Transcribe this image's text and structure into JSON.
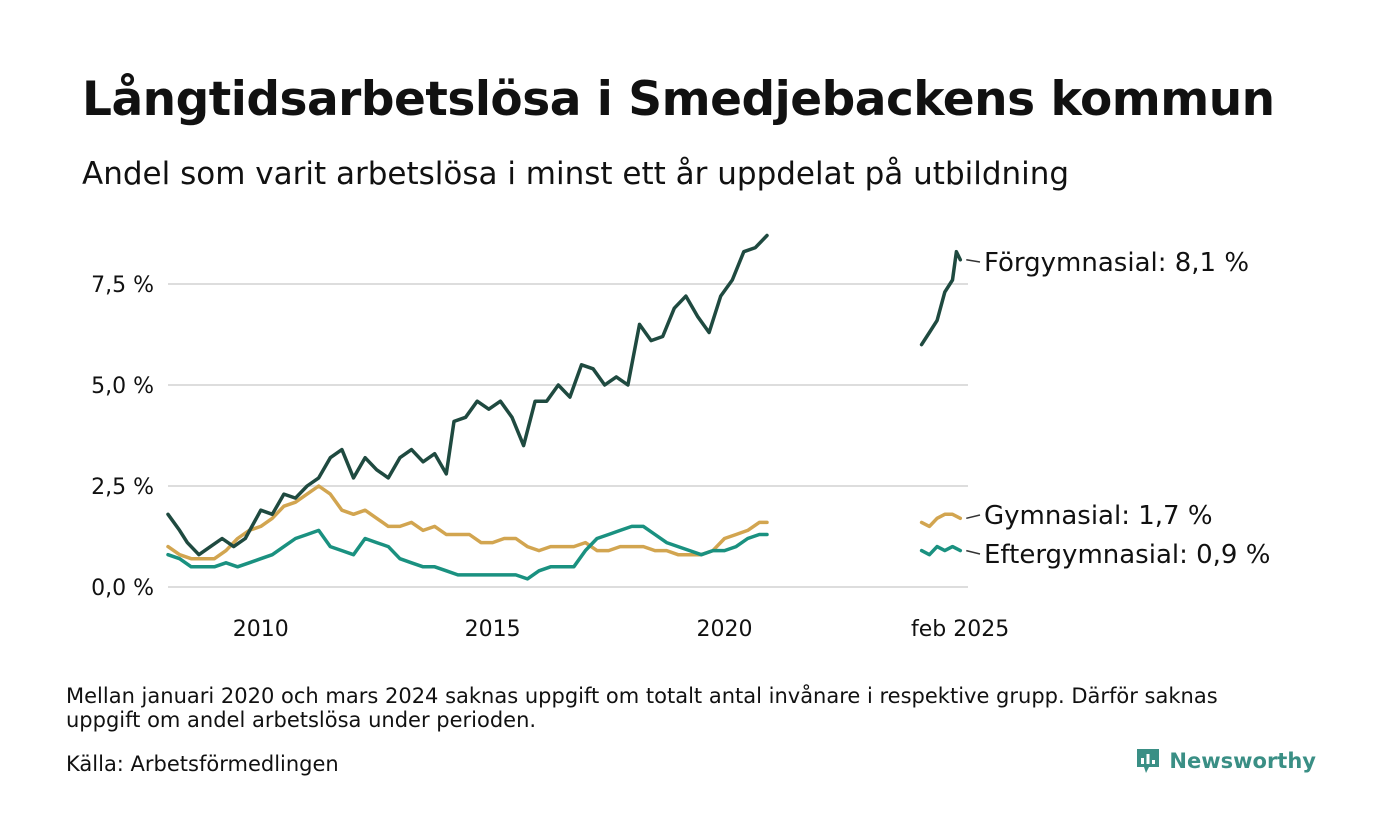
{
  "title": "Långtidsarbetslösa i Smedjebackens kommun",
  "subtitle": "Andel som varit arbetslösa i minst ett år uppdelat på utbildning",
  "note": "Mellan januari 2020 och mars 2024 saknas uppgift om totalt antal invånare i respektive grupp. Därför saknas uppgift om andel arbetslösa under perioden.",
  "source": "Källa: Arbetsförmedlingen",
  "brand": "Newsworthy",
  "colors": {
    "forgymnasial": "#1f4a40",
    "gymnasial": "#d2a550",
    "eftergymnasial": "#1a9180",
    "grid": "#dddddd",
    "brand": "#3a8f85"
  },
  "chart_data": {
    "type": "line",
    "title": "Långtidsarbetslösa i Smedjebackens kommun",
    "subtitle": "Andel som varit arbetslösa i minst ett år uppdelat på utbildning",
    "xlabel": "",
    "ylabel": "",
    "x_ticks": [
      "2010",
      "2015",
      "2020",
      "feb 2025"
    ],
    "y_ticks": [
      "0,0 %",
      "2,5 %",
      "5,0 %",
      "7,5 %"
    ],
    "ylim": [
      0,
      8.7
    ],
    "grid": "horizontal",
    "legend": "direct labels at line ends (right)",
    "end_labels": [
      "Förgymnasial: 8,1 %",
      "Gymnasial: 1,7 %",
      "Eftergymnasial: 0,9 %"
    ],
    "gap_note": "Data missing between 2021 and 2024",
    "series": [
      {
        "name": "Förgymnasial",
        "segments": [
          [
            [
              "2008-01",
              1.8
            ],
            [
              "2008-04",
              1.4
            ],
            [
              "2008-06",
              1.1
            ],
            [
              "2008-09",
              0.8
            ],
            [
              "2008-12",
              1.0
            ],
            [
              "2009-03",
              1.2
            ],
            [
              "2009-06",
              1.0
            ],
            [
              "2009-09",
              1.2
            ],
            [
              "2010-01",
              1.9
            ],
            [
              "2010-04",
              1.8
            ],
            [
              "2010-07",
              2.3
            ],
            [
              "2010-10",
              2.2
            ],
            [
              "2011-01",
              2.5
            ],
            [
              "2011-04",
              2.7
            ],
            [
              "2011-07",
              3.2
            ],
            [
              "2011-10",
              3.4
            ],
            [
              "2012-01",
              2.7
            ],
            [
              "2012-04",
              3.2
            ],
            [
              "2012-07",
              2.9
            ],
            [
              "2012-10",
              2.7
            ],
            [
              "2013-01",
              3.2
            ],
            [
              "2013-04",
              3.4
            ],
            [
              "2013-07",
              3.1
            ],
            [
              "2013-10",
              3.3
            ],
            [
              "2014-01",
              2.8
            ],
            [
              "2014-03",
              4.1
            ],
            [
              "2014-06",
              4.2
            ],
            [
              "2014-09",
              4.6
            ],
            [
              "2014-12",
              4.4
            ],
            [
              "2015-03",
              4.6
            ],
            [
              "2015-06",
              4.2
            ],
            [
              "2015-09",
              3.5
            ],
            [
              "2015-12",
              4.6
            ],
            [
              "2016-03",
              4.6
            ],
            [
              "2016-06",
              5.0
            ],
            [
              "2016-09",
              4.7
            ],
            [
              "2016-12",
              5.5
            ],
            [
              "2017-03",
              5.4
            ],
            [
              "2017-06",
              5.0
            ],
            [
              "2017-09",
              5.2
            ],
            [
              "2017-12",
              5.0
            ],
            [
              "2018-03",
              6.5
            ],
            [
              "2018-06",
              6.1
            ],
            [
              "2018-09",
              6.2
            ],
            [
              "2018-12",
              6.9
            ],
            [
              "2019-03",
              7.2
            ],
            [
              "2019-06",
              6.7
            ],
            [
              "2019-09",
              6.3
            ],
            [
              "2019-12",
              7.2
            ],
            [
              "2020-03",
              7.6
            ],
            [
              "2020-06",
              8.3
            ],
            [
              "2020-09",
              8.4
            ],
            [
              "2020-12",
              8.7
            ]
          ],
          [
            [
              "2024-04",
              6.0
            ],
            [
              "2024-06",
              6.3
            ],
            [
              "2024-08",
              6.6
            ],
            [
              "2024-10",
              7.3
            ],
            [
              "2024-12",
              7.6
            ],
            [
              "2025-01",
              8.3
            ],
            [
              "2025-02",
              8.1
            ]
          ]
        ]
      },
      {
        "name": "Gymnasial",
        "segments": [
          [
            [
              "2008-01",
              1.0
            ],
            [
              "2008-04",
              0.8
            ],
            [
              "2008-07",
              0.7
            ],
            [
              "2008-10",
              0.7
            ],
            [
              "2009-01",
              0.7
            ],
            [
              "2009-04",
              0.9
            ],
            [
              "2009-07",
              1.2
            ],
            [
              "2009-10",
              1.4
            ],
            [
              "2010-01",
              1.5
            ],
            [
              "2010-04",
              1.7
            ],
            [
              "2010-07",
              2.0
            ],
            [
              "2010-10",
              2.1
            ],
            [
              "2011-01",
              2.3
            ],
            [
              "2011-04",
              2.5
            ],
            [
              "2011-07",
              2.3
            ],
            [
              "2011-10",
              1.9
            ],
            [
              "2012-01",
              1.8
            ],
            [
              "2012-04",
              1.9
            ],
            [
              "2012-07",
              1.7
            ],
            [
              "2012-10",
              1.5
            ],
            [
              "2013-01",
              1.5
            ],
            [
              "2013-04",
              1.6
            ],
            [
              "2013-07",
              1.4
            ],
            [
              "2013-10",
              1.5
            ],
            [
              "2014-01",
              1.3
            ],
            [
              "2014-04",
              1.3
            ],
            [
              "2014-07",
              1.3
            ],
            [
              "2014-10",
              1.1
            ],
            [
              "2015-01",
              1.1
            ],
            [
              "2015-04",
              1.2
            ],
            [
              "2015-07",
              1.2
            ],
            [
              "2015-10",
              1.0
            ],
            [
              "2016-01",
              0.9
            ],
            [
              "2016-04",
              1.0
            ],
            [
              "2016-07",
              1.0
            ],
            [
              "2016-10",
              1.0
            ],
            [
              "2017-01",
              1.1
            ],
            [
              "2017-04",
              0.9
            ],
            [
              "2017-07",
              0.9
            ],
            [
              "2017-10",
              1.0
            ],
            [
              "2018-01",
              1.0
            ],
            [
              "2018-04",
              1.0
            ],
            [
              "2018-07",
              0.9
            ],
            [
              "2018-10",
              0.9
            ],
            [
              "2019-01",
              0.8
            ],
            [
              "2019-04",
              0.8
            ],
            [
              "2019-07",
              0.8
            ],
            [
              "2019-10",
              0.9
            ],
            [
              "2020-01",
              1.2
            ],
            [
              "2020-04",
              1.3
            ],
            [
              "2020-07",
              1.4
            ],
            [
              "2020-10",
              1.6
            ],
            [
              "2020-12",
              1.6
            ]
          ],
          [
            [
              "2024-04",
              1.6
            ],
            [
              "2024-06",
              1.5
            ],
            [
              "2024-08",
              1.7
            ],
            [
              "2024-10",
              1.8
            ],
            [
              "2024-12",
              1.8
            ],
            [
              "2025-02",
              1.7
            ]
          ]
        ]
      },
      {
        "name": "Eftergymnasial",
        "segments": [
          [
            [
              "2008-01",
              0.8
            ],
            [
              "2008-04",
              0.7
            ],
            [
              "2008-07",
              0.5
            ],
            [
              "2008-10",
              0.5
            ],
            [
              "2009-01",
              0.5
            ],
            [
              "2009-04",
              0.6
            ],
            [
              "2009-07",
              0.5
            ],
            [
              "2009-10",
              0.6
            ],
            [
              "2010-01",
              0.7
            ],
            [
              "2010-04",
              0.8
            ],
            [
              "2010-07",
              1.0
            ],
            [
              "2010-10",
              1.2
            ],
            [
              "2011-01",
              1.3
            ],
            [
              "2011-04",
              1.4
            ],
            [
              "2011-07",
              1.0
            ],
            [
              "2011-10",
              0.9
            ],
            [
              "2012-01",
              0.8
            ],
            [
              "2012-04",
              1.2
            ],
            [
              "2012-07",
              1.1
            ],
            [
              "2012-10",
              1.0
            ],
            [
              "2013-01",
              0.7
            ],
            [
              "2013-04",
              0.6
            ],
            [
              "2013-07",
              0.5
            ],
            [
              "2013-10",
              0.5
            ],
            [
              "2014-01",
              0.4
            ],
            [
              "2014-04",
              0.3
            ],
            [
              "2014-07",
              0.3
            ],
            [
              "2014-10",
              0.3
            ],
            [
              "2015-01",
              0.3
            ],
            [
              "2015-04",
              0.3
            ],
            [
              "2015-07",
              0.3
            ],
            [
              "2015-10",
              0.2
            ],
            [
              "2016-01",
              0.4
            ],
            [
              "2016-04",
              0.5
            ],
            [
              "2016-07",
              0.5
            ],
            [
              "2016-10",
              0.5
            ],
            [
              "2017-01",
              0.9
            ],
            [
              "2017-04",
              1.2
            ],
            [
              "2017-07",
              1.3
            ],
            [
              "2017-10",
              1.4
            ],
            [
              "2018-01",
              1.5
            ],
            [
              "2018-04",
              1.5
            ],
            [
              "2018-07",
              1.3
            ],
            [
              "2018-10",
              1.1
            ],
            [
              "2019-01",
              1.0
            ],
            [
              "2019-04",
              0.9
            ],
            [
              "2019-07",
              0.8
            ],
            [
              "2019-10",
              0.9
            ],
            [
              "2020-01",
              0.9
            ],
            [
              "2020-04",
              1.0
            ],
            [
              "2020-07",
              1.2
            ],
            [
              "2020-10",
              1.3
            ],
            [
              "2020-12",
              1.3
            ]
          ],
          [
            [
              "2024-04",
              0.9
            ],
            [
              "2024-06",
              0.8
            ],
            [
              "2024-08",
              1.0
            ],
            [
              "2024-10",
              0.9
            ],
            [
              "2024-12",
              1.0
            ],
            [
              "2025-02",
              0.9
            ]
          ]
        ]
      }
    ]
  }
}
